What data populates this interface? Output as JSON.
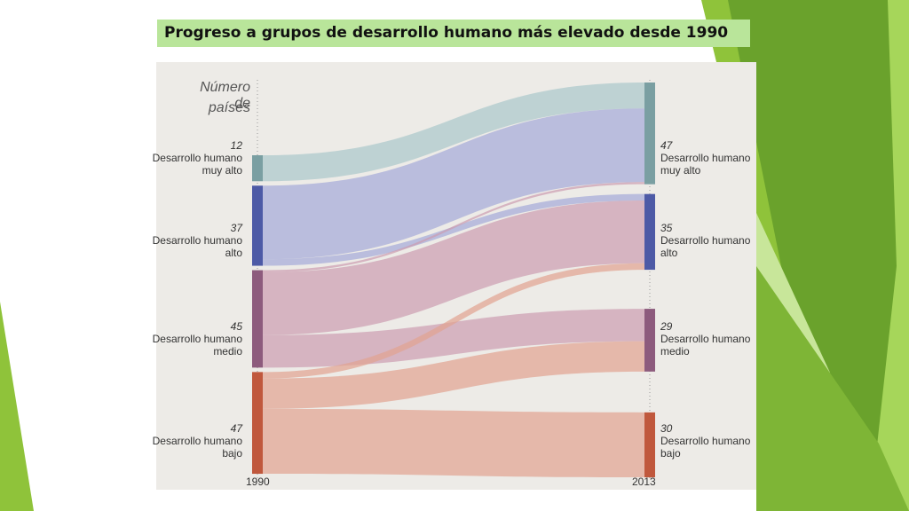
{
  "slide_title": "Progreso a grupos de desarrollo humano más elevado desde 1990",
  "chart_data": {
    "type": "sankey",
    "y_axis_title": [
      "Número de",
      "países"
    ],
    "years": [
      "1990",
      "2013"
    ],
    "left_nodes": [
      {
        "id": "vh",
        "count": "12",
        "line1": "Desarrollo humano",
        "line2": "muy alto",
        "color": "#7a9fa2"
      },
      {
        "id": "h",
        "count": "37",
        "line1": "Desarrollo humano",
        "line2": "alto",
        "color": "#4d5aa6"
      },
      {
        "id": "m",
        "count": "45",
        "line1": "Desarrollo humano",
        "line2": "medio",
        "color": "#8d5b7d"
      },
      {
        "id": "l",
        "count": "47",
        "line1": "Desarrollo humano",
        "line2": "bajo",
        "color": "#c0583d"
      }
    ],
    "right_nodes": [
      {
        "id": "vh",
        "count": "47",
        "line1": "Desarrollo humano",
        "line2": "muy alto",
        "color": "#7a9fa2"
      },
      {
        "id": "h",
        "count": "35",
        "line1": "Desarrollo humano",
        "line2": "alto",
        "color": "#4d5aa6"
      },
      {
        "id": "m",
        "count": "29",
        "line1": "Desarrollo humano",
        "line2": "medio",
        "color": "#8d5b7d"
      },
      {
        "id": "l",
        "count": "30",
        "line1": "Desarrollo humano",
        "line2": "bajo",
        "color": "#c0583d"
      }
    ],
    "flows": [
      {
        "from": "vh",
        "to": "vh",
        "value": 12
      },
      {
        "from": "h",
        "to": "vh",
        "value": 34
      },
      {
        "from": "h",
        "to": "h",
        "value": 3
      },
      {
        "from": "m",
        "to": "vh",
        "value": 1
      },
      {
        "from": "m",
        "to": "h",
        "value": 29
      },
      {
        "from": "m",
        "to": "m",
        "value": 15
      },
      {
        "from": "l",
        "to": "h",
        "value": 3
      },
      {
        "from": "l",
        "to": "m",
        "value": 14
      },
      {
        "from": "l",
        "to": "l",
        "value": 30
      }
    ]
  }
}
